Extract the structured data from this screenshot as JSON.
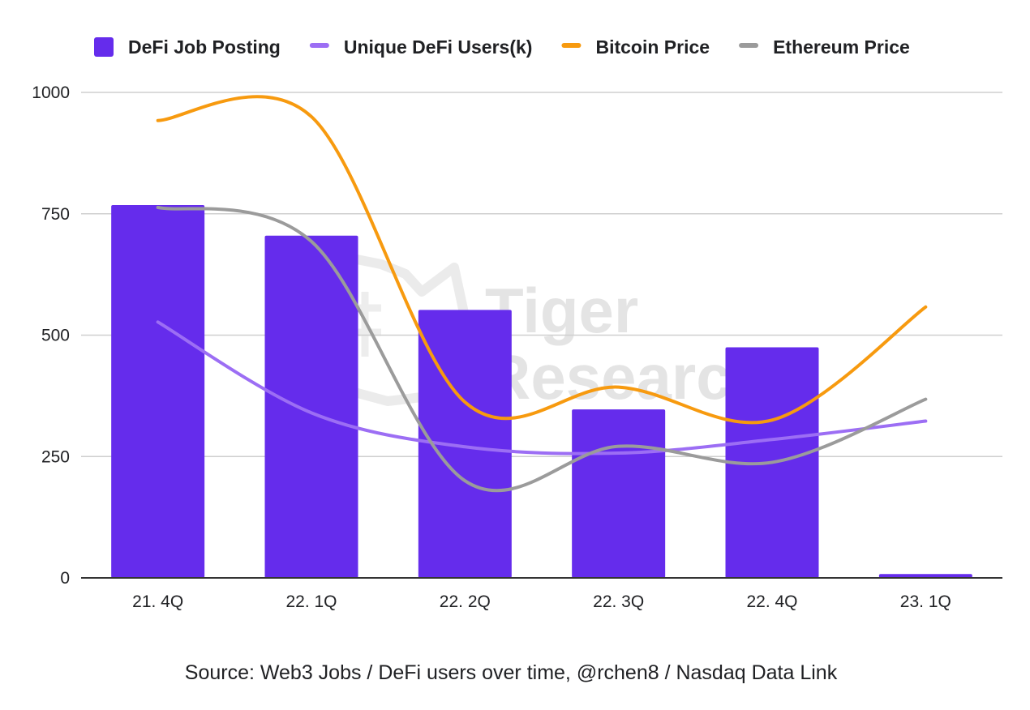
{
  "chart_data": {
    "type": "bar+line",
    "title": "",
    "categories": [
      "21. 4Q",
      "22. 1Q",
      "22. 2Q",
      "22. 3Q",
      "22. 4Q",
      "23. 1Q"
    ],
    "ylim": [
      0,
      1000
    ],
    "yticks": [
      0,
      250,
      500,
      750,
      1000
    ],
    "xlabel": "",
    "ylabel": "",
    "grid": true,
    "legend_position": "top",
    "series": [
      {
        "name": "DeFi Job Posting",
        "kind": "bar",
        "color": "#652cec",
        "values": [
          768,
          705,
          552,
          347,
          475,
          8
        ]
      },
      {
        "name": "Unique DeFi Users(k)",
        "kind": "line",
        "color": "#9c6ef4",
        "values": [
          527,
          340,
          270,
          257,
          285,
          323
        ]
      },
      {
        "name": "Bitcoin Price",
        "kind": "line",
        "color": "#f79a0f",
        "values": [
          942,
          950,
          362,
          393,
          325,
          558
        ]
      },
      {
        "name": "Ethereum Price",
        "kind": "line",
        "color": "#9b9b9b",
        "values": [
          763,
          693,
          200,
          271,
          238,
          368
        ]
      }
    ],
    "watermark": [
      "Tiger",
      "Research"
    ]
  },
  "source": "Source: Web3 Jobs / DeFi users over time, @rchen8 / Nasdaq Data Link"
}
